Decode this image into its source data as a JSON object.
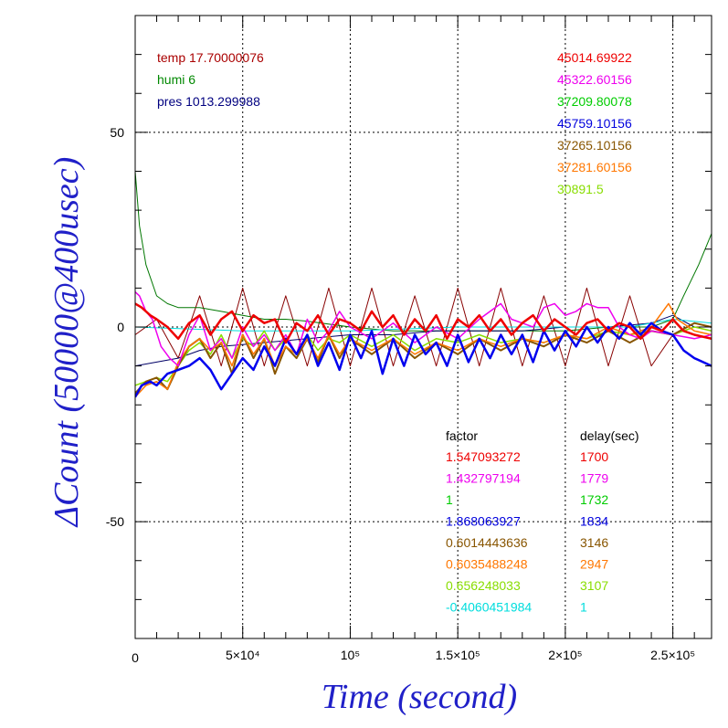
{
  "chart_data": {
    "type": "line",
    "xlabel": "Time (second)",
    "ylabel": "ΔCount (50000@400usec)",
    "xlim": [
      0,
      268000
    ],
    "ylim": [
      -80,
      80
    ],
    "grid": true,
    "x_ticks": [
      {
        "value": 0,
        "label": "0"
      },
      {
        "value": 50000,
        "label": "5×10⁴"
      },
      {
        "value": 100000,
        "label": "10⁵"
      },
      {
        "value": 150000,
        "label": "1.5×10⁵"
      },
      {
        "value": 200000,
        "label": "2×10⁵"
      },
      {
        "value": 250000,
        "label": "2.5×10⁵"
      }
    ],
    "y_ticks": [
      {
        "value": 50,
        "label": "50"
      },
      {
        "value": 0,
        "label": "0"
      },
      {
        "value": -50,
        "label": "-50"
      }
    ],
    "env_labels": [
      {
        "text": "temp 17.70000076",
        "color": "#aa0000"
      },
      {
        "text": "humi 6",
        "color": "#008800"
      },
      {
        "text": "pres 1013.299988",
        "color": "#000080"
      }
    ],
    "mean_counts": [
      {
        "text": "45014.69922",
        "color": "#ee0000"
      },
      {
        "text": "45322.60156",
        "color": "#ee00ee"
      },
      {
        "text": "37209.80078",
        "color": "#00cc00"
      },
      {
        "text": "45759.10156",
        "color": "#0000dd"
      },
      {
        "text": "37265.10156",
        "color": "#885500"
      },
      {
        "text": "37281.60156",
        "color": "#ff7700"
      },
      {
        "text": "30891.5",
        "color": "#88dd00"
      }
    ],
    "table_headers": {
      "factor": "factor",
      "delay": "delay(sec)"
    },
    "factors": [
      {
        "factor": "1.547093272",
        "delay": "1700",
        "color": "#ee0000"
      },
      {
        "factor": "1.432797194",
        "delay": "1779",
        "color": "#ee00ee"
      },
      {
        "factor": "1",
        "delay": "1732",
        "color": "#00cc00"
      },
      {
        "factor": "1.868063927",
        "delay": "1834",
        "color": "#0000dd"
      },
      {
        "factor": "0.6014443636",
        "delay": "3146",
        "color": "#885500"
      },
      {
        "factor": "0.6035488248",
        "delay": "2947",
        "color": "#ff7700"
      },
      {
        "factor": "0.656248033",
        "delay": "3107",
        "color": "#88dd00"
      },
      {
        "factor": "-0.4060451984",
        "delay": "1",
        "color": "#00dddd"
      }
    ],
    "series": [
      {
        "color": "#880000",
        "width": 1,
        "x": [
          0,
          10000,
          20000,
          30000,
          40000,
          50000,
          60000,
          70000,
          80000,
          90000,
          100000,
          110000,
          120000,
          130000,
          140000,
          150000,
          160000,
          170000,
          180000,
          190000,
          200000,
          210000,
          220000,
          230000,
          240000,
          250000,
          260000,
          268000
        ],
        "y": [
          -2,
          2,
          -8,
          8,
          -10,
          10,
          -10,
          8,
          -10,
          10,
          -10,
          10,
          -10,
          8,
          -10,
          10,
          -10,
          10,
          -10,
          8,
          -10,
          10,
          -10,
          8,
          -10,
          -2,
          0,
          0
        ]
      },
      {
        "color": "#007700",
        "width": 1,
        "x": [
          0,
          2000,
          5000,
          10000,
          15000,
          20000,
          30000,
          40000,
          50000,
          60000,
          70000,
          80000,
          100000,
          120000,
          150000,
          180000,
          200000,
          220000,
          240000,
          250000,
          255000,
          262000,
          268000
        ],
        "y": [
          40,
          26,
          16,
          8,
          6,
          5,
          5,
          4,
          3,
          2,
          2,
          1.5,
          0,
          -1,
          -1,
          -1,
          -1,
          0,
          0,
          2,
          8,
          16,
          24
        ]
      },
      {
        "color": "#000066",
        "width": 1,
        "x": [
          0,
          10000,
          20000,
          30000,
          40000,
          60000,
          80000,
          100000,
          120000,
          140000,
          160000,
          180000,
          200000,
          220000,
          240000,
          250000,
          260000,
          268000
        ],
        "y": [
          -10,
          -9,
          -8,
          -6,
          -5,
          -4,
          -3,
          -2,
          -2,
          -1,
          -1,
          -1,
          0,
          0,
          1,
          3,
          0,
          -1
        ]
      },
      {
        "color": "#00dddd",
        "width": 1,
        "x": [
          0,
          50000,
          100000,
          150000,
          200000,
          230000,
          250000,
          268000
        ],
        "y": [
          0,
          -1,
          -1,
          0,
          0,
          0,
          2,
          1
        ]
      },
      {
        "color": "#88dd00",
        "width": 1.5,
        "x": [
          0,
          5000,
          10000,
          15000,
          20000,
          25000,
          30000,
          35000,
          40000,
          45000,
          50000,
          55000,
          60000,
          65000,
          70000,
          75000,
          80000,
          85000,
          90000,
          95000,
          100000,
          110000,
          120000,
          130000,
          140000,
          150000,
          160000,
          170000,
          180000,
          190000,
          200000,
          210000,
          220000,
          230000,
          240000,
          250000,
          260000,
          268000
        ],
        "y": [
          -15,
          -14,
          -13,
          -14,
          -10,
          -6,
          -4,
          -7,
          -2,
          -8,
          -3,
          -5,
          -1,
          -6,
          -3,
          -7,
          -2,
          -6,
          -3,
          -4,
          -2,
          -5,
          -2,
          -6,
          -3,
          -4,
          -2,
          -4,
          -3,
          -4,
          -2,
          -3,
          -1,
          -2,
          -1,
          -2,
          0,
          -1
        ]
      },
      {
        "color": "#885500",
        "width": 2,
        "x": [
          0,
          5000,
          10000,
          15000,
          20000,
          25000,
          30000,
          35000,
          40000,
          45000,
          50000,
          55000,
          60000,
          65000,
          70000,
          75000,
          80000,
          85000,
          90000,
          95000,
          100000,
          110000,
          120000,
          130000,
          140000,
          150000,
          160000,
          170000,
          180000,
          190000,
          200000,
          210000,
          220000,
          230000,
          240000,
          250000,
          260000,
          268000
        ],
        "y": [
          -17,
          -14,
          -13,
          -16,
          -10,
          -5,
          -3,
          -8,
          -4,
          -12,
          -2,
          -8,
          -3,
          -12,
          -5,
          -8,
          -3,
          -9,
          -2,
          -8,
          -3,
          -7,
          -3,
          -8,
          -4,
          -7,
          -3,
          -6,
          -3,
          -5,
          -2,
          -4,
          -1,
          -4,
          -1,
          -2,
          1,
          0
        ]
      },
      {
        "color": "#ff7700",
        "width": 1.5,
        "x": [
          0,
          5000,
          10000,
          15000,
          20000,
          25000,
          30000,
          35000,
          40000,
          45000,
          50000,
          55000,
          60000,
          65000,
          70000,
          75000,
          80000,
          85000,
          90000,
          95000,
          100000,
          110000,
          120000,
          130000,
          140000,
          150000,
          160000,
          170000,
          180000,
          190000,
          200000,
          210000,
          220000,
          230000,
          240000,
          248000,
          252000,
          260000,
          268000
        ],
        "y": [
          -18,
          -15,
          -14,
          -16,
          -9,
          -5,
          -3,
          -6,
          -4,
          -10,
          -2,
          -7,
          -3,
          -10,
          -5,
          -7,
          -3,
          -8,
          -2,
          -7,
          -3,
          -6,
          -3,
          -7,
          -4,
          -6,
          -3,
          -5,
          -3,
          -4,
          -2,
          -3,
          0,
          -2,
          0,
          6,
          2,
          -1,
          -2
        ]
      },
      {
        "color": "#ee00ee",
        "width": 1.5,
        "x": [
          0,
          2000,
          5000,
          8000,
          12000,
          16000,
          20000,
          25000,
          30000,
          35000,
          40000,
          45000,
          50000,
          55000,
          60000,
          65000,
          70000,
          75000,
          80000,
          85000,
          90000,
          95000,
          100000,
          110000,
          120000,
          130000,
          140000,
          150000,
          160000,
          165000,
          170000,
          175000,
          180000,
          185000,
          190000,
          195000,
          200000,
          205000,
          210000,
          215000,
          220000,
          225000,
          230000,
          235000,
          240000,
          250000,
          260000,
          268000
        ],
        "y": [
          9,
          8,
          4,
          2,
          -5,
          -8,
          -10,
          -2,
          3,
          -6,
          -3,
          -8,
          0,
          -5,
          -2,
          -6,
          -2,
          -7,
          2,
          -4,
          -1,
          4,
          0,
          -3,
          1,
          -4,
          0,
          -3,
          2,
          4,
          6,
          2,
          1,
          0,
          5,
          6,
          3,
          4,
          6,
          5,
          5,
          0,
          -2,
          -3,
          -1,
          -2,
          -3,
          -2
        ]
      },
      {
        "color": "#0000ee",
        "width": 2.5,
        "x": [
          0,
          3000,
          7000,
          10000,
          15000,
          20000,
          25000,
          30000,
          35000,
          40000,
          45000,
          50000,
          55000,
          60000,
          65000,
          70000,
          75000,
          80000,
          85000,
          90000,
          95000,
          100000,
          105000,
          110000,
          115000,
          120000,
          125000,
          130000,
          135000,
          140000,
          145000,
          150000,
          155000,
          160000,
          165000,
          170000,
          175000,
          180000,
          185000,
          190000,
          195000,
          200000,
          205000,
          210000,
          215000,
          220000,
          225000,
          230000,
          235000,
          240000,
          245000,
          250000,
          255000,
          260000,
          268000
        ],
        "y": [
          -18,
          -15,
          -14,
          -15,
          -12,
          -11,
          -10,
          -8,
          -11,
          -16,
          -12,
          -8,
          -11,
          -5,
          -10,
          -3,
          -7,
          -2,
          -10,
          -4,
          -11,
          -2,
          -8,
          -1,
          -12,
          -3,
          -10,
          -2,
          -7,
          -4,
          -10,
          -2,
          -9,
          -3,
          -8,
          -2,
          -7,
          -2,
          -9,
          -1,
          -6,
          -1,
          -5,
          0,
          -4,
          0,
          -3,
          1,
          -2,
          1,
          -1,
          -2,
          -6,
          -8,
          -10
        ]
      },
      {
        "color": "#ee0000",
        "width": 2.5,
        "x": [
          0,
          3000,
          7000,
          10000,
          15000,
          20000,
          25000,
          30000,
          35000,
          40000,
          45000,
          50000,
          55000,
          60000,
          65000,
          70000,
          75000,
          80000,
          85000,
          90000,
          95000,
          100000,
          105000,
          110000,
          115000,
          120000,
          125000,
          130000,
          135000,
          140000,
          145000,
          150000,
          155000,
          160000,
          165000,
          170000,
          175000,
          180000,
          185000,
          190000,
          195000,
          200000,
          205000,
          210000,
          215000,
          220000,
          225000,
          230000,
          235000,
          240000,
          245000,
          250000,
          255000,
          260000,
          268000
        ],
        "y": [
          6,
          5,
          3,
          2,
          0,
          -3,
          1,
          3,
          -2,
          2,
          4,
          -1,
          3,
          1,
          2,
          -4,
          1,
          -1,
          3,
          -2,
          2,
          1,
          -1,
          4,
          0,
          3,
          -2,
          2,
          -1,
          3,
          -3,
          2,
          0,
          3,
          -1,
          2,
          -2,
          1,
          3,
          -1,
          2,
          0,
          -2,
          1,
          2,
          -1,
          1,
          0,
          -3,
          0,
          -1,
          2,
          -1,
          -2,
          -3
        ]
      }
    ]
  }
}
